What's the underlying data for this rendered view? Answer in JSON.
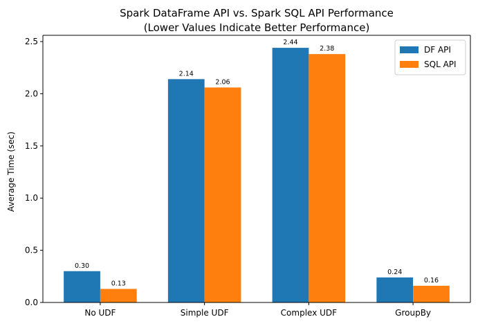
{
  "chart_data": {
    "type": "bar",
    "title": "Spark DataFrame API vs. Spark SQL API Performance",
    "subtitle": "(Lower Values Indicate Better Performance)",
    "xlabel": "",
    "ylabel": "Average Time (sec)",
    "categories": [
      "No UDF",
      "Simple UDF",
      "Complex UDF",
      "GroupBy"
    ],
    "series": [
      {
        "name": "DF API",
        "values": [
          0.3,
          2.14,
          2.44,
          0.24
        ],
        "labels": [
          "0.30",
          "2.14",
          "2.44",
          "0.24"
        ],
        "color": "#1f77b4"
      },
      {
        "name": "SQL API",
        "values": [
          0.13,
          2.06,
          2.38,
          0.16
        ],
        "labels": [
          "0.13",
          "2.06",
          "2.38",
          "0.16"
        ],
        "color": "#ff7f0e"
      }
    ],
    "ylim": [
      0,
      2.56
    ],
    "yticks": [
      0.0,
      0.5,
      1.0,
      1.5,
      2.0,
      2.5
    ],
    "ytick_labels": [
      "0.0",
      "0.5",
      "1.0",
      "1.5",
      "2.0",
      "2.5"
    ],
    "grid": false,
    "legend_position": "top-right"
  }
}
